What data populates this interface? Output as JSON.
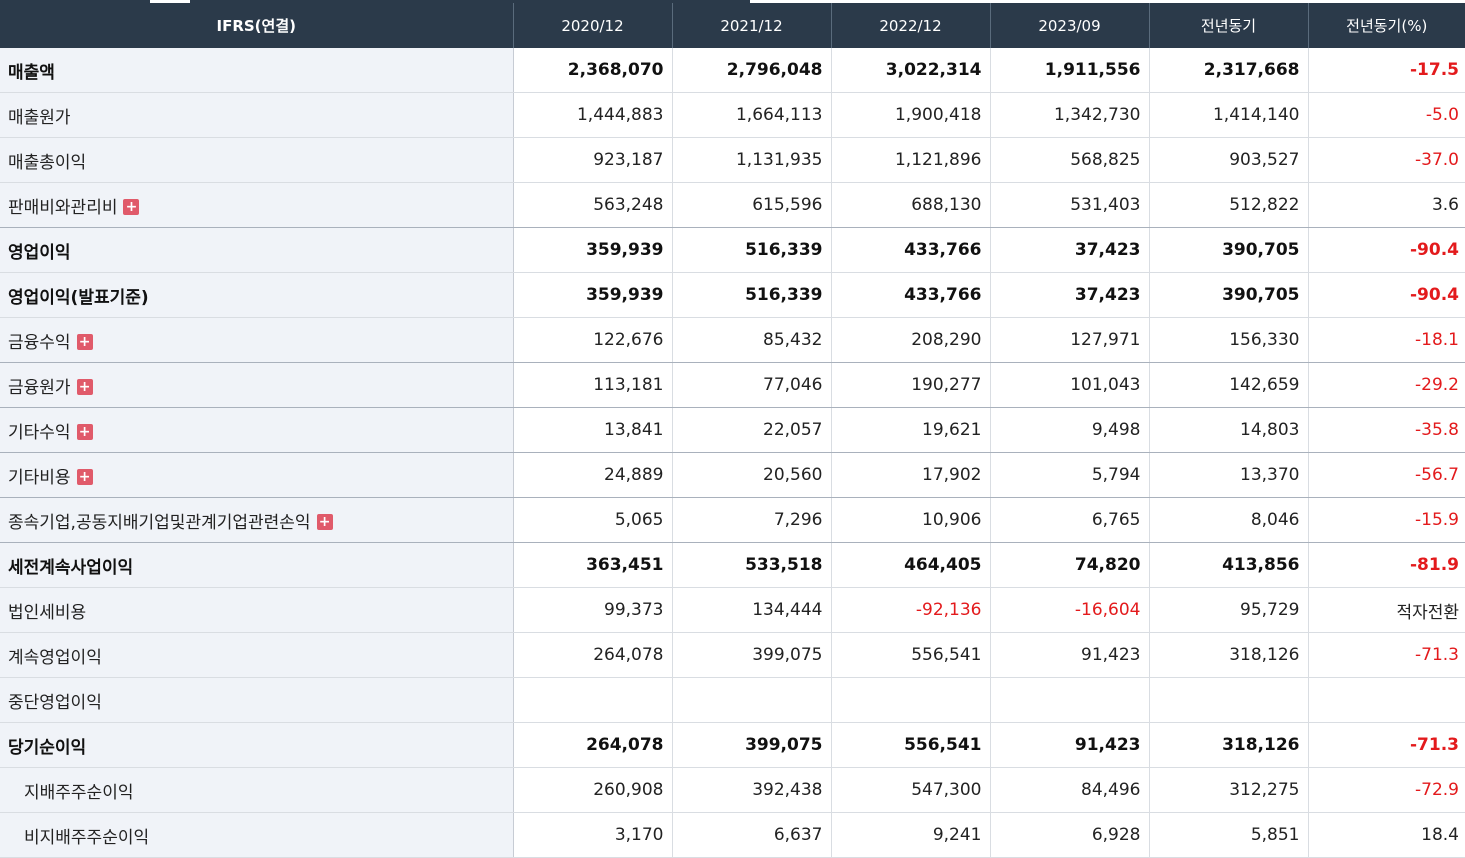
{
  "header": {
    "label": "IFRS(연결)",
    "periods": [
      "2020/12",
      "2021/12",
      "2022/12",
      "2023/09",
      "전년동기",
      "전년동기(%)"
    ]
  },
  "rows": [
    {
      "label": "매출액",
      "values": [
        "2,368,070",
        "2,796,048",
        "3,022,314",
        "1,911,556",
        "2,317,668",
        "-17.5"
      ]
    },
    {
      "label": "매출원가",
      "values": [
        "1,444,883",
        "1,664,113",
        "1,900,418",
        "1,342,730",
        "1,414,140",
        "-5.0"
      ]
    },
    {
      "label": "매출총이익",
      "values": [
        "923,187",
        "1,131,935",
        "1,121,896",
        "568,825",
        "903,527",
        "-37.0"
      ]
    },
    {
      "label": "판매비와관리비",
      "plus": "+",
      "values": [
        "563,248",
        "615,596",
        "688,130",
        "531,403",
        "512,822",
        "3.6"
      ]
    },
    {
      "label": "영업이익",
      "values": [
        "359,939",
        "516,339",
        "433,766",
        "37,423",
        "390,705",
        "-90.4"
      ]
    },
    {
      "label": "영업이익(발표기준)",
      "values": [
        "359,939",
        "516,339",
        "433,766",
        "37,423",
        "390,705",
        "-90.4"
      ]
    },
    {
      "label": "금융수익",
      "plus": "+",
      "values": [
        "122,676",
        "85,432",
        "208,290",
        "127,971",
        "156,330",
        "-18.1"
      ]
    },
    {
      "label": "금융원가",
      "plus": "+",
      "values": [
        "113,181",
        "77,046",
        "190,277",
        "101,043",
        "142,659",
        "-29.2"
      ]
    },
    {
      "label": "기타수익",
      "plus": "+",
      "values": [
        "13,841",
        "22,057",
        "19,621",
        "9,498",
        "14,803",
        "-35.8"
      ]
    },
    {
      "label": "기타비용",
      "plus": "+",
      "values": [
        "24,889",
        "20,560",
        "17,902",
        "5,794",
        "13,370",
        "-56.7"
      ]
    },
    {
      "label": "종속기업,공동지배기업및관계기업관련손익",
      "plus": "+",
      "values": [
        "5,065",
        "7,296",
        "10,906",
        "6,765",
        "8,046",
        "-15.9"
      ]
    },
    {
      "label": "세전계속사업이익",
      "values": [
        "363,451",
        "533,518",
        "464,405",
        "74,820",
        "413,856",
        "-81.9"
      ]
    },
    {
      "label": "법인세비용",
      "values": [
        "99,373",
        "134,444",
        "-92,136",
        "-16,604",
        "95,729",
        "적자전환"
      ]
    },
    {
      "label": "계속영업이익",
      "values": [
        "264,078",
        "399,075",
        "556,541",
        "91,423",
        "318,126",
        "-71.3"
      ]
    },
    {
      "label": "중단영업이익",
      "values": [
        "",
        "",
        "",
        "",
        "",
        ""
      ]
    },
    {
      "label": "당기순이익",
      "values": [
        "264,078",
        "399,075",
        "556,541",
        "91,423",
        "318,126",
        "-71.3"
      ]
    },
    {
      "label": "지배주주순이익",
      "values": [
        "260,908",
        "392,438",
        "547,300",
        "84,496",
        "312,275",
        "-72.9"
      ]
    },
    {
      "label": "비지배주주순이익",
      "values": [
        "3,170",
        "6,637",
        "9,241",
        "6,928",
        "5,851",
        "18.4"
      ]
    }
  ]
}
